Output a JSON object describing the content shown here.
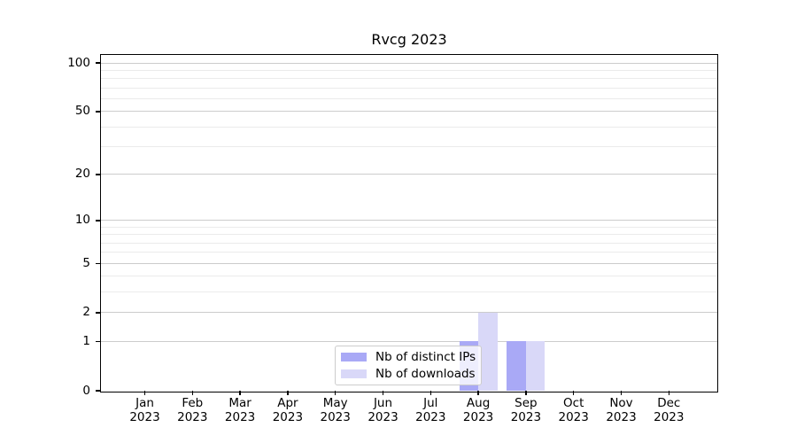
{
  "title": "Rvcg 2023",
  "chart_data": {
    "type": "bar",
    "title": "Rvcg 2023",
    "xlabel": "",
    "ylabel": "",
    "categories": [
      "Jan\n2023",
      "Feb\n2023",
      "Mar\n2023",
      "Apr\n2023",
      "May\n2023",
      "Jun\n2023",
      "Jul\n2023",
      "Aug\n2023",
      "Sep\n2023",
      "Oct\n2023",
      "Nov\n2023",
      "Dec\n2023"
    ],
    "series": [
      {
        "name": "Nb of distinct IPs",
        "color": "#a9a9f6",
        "values": [
          0,
          0,
          0,
          0,
          0,
          0,
          0,
          1,
          1,
          0,
          0,
          0
        ]
      },
      {
        "name": "Nb of downloads",
        "color": "#d9d8f8",
        "values": [
          0,
          0,
          0,
          0,
          0,
          0,
          0,
          2,
          1,
          0,
          0,
          0
        ]
      }
    ],
    "y_axis": {
      "scale": "log1p",
      "ticks": [
        0,
        1,
        2,
        5,
        10,
        20,
        50,
        100
      ],
      "minor_ticks": [
        3,
        4,
        6,
        7,
        8,
        9,
        30,
        40,
        60,
        70,
        80,
        90
      ]
    },
    "ylim": [
      0,
      112
    ],
    "grid": true,
    "legend": {
      "position": "lower center",
      "entries": [
        "Nb of distinct IPs",
        "Nb of downloads"
      ]
    },
    "colors": {
      "axis": "#000000",
      "major_grid": "#cccccc",
      "minor_grid": "#ebebeb",
      "background": "#ffffff"
    }
  }
}
